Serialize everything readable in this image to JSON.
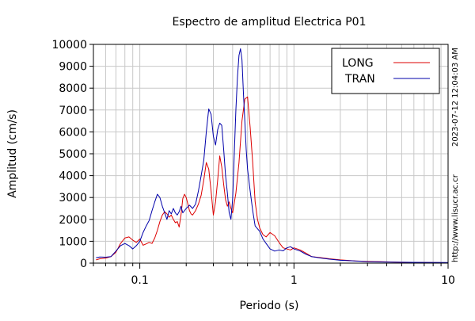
{
  "chart_data": {
    "type": "line",
    "title": "Espectro de amplitud Electrica P01",
    "xlabel": "Periodo (s)",
    "ylabel": "Amplitud (cm/s)",
    "x_scale": "log",
    "xlim": [
      0.05,
      10
    ],
    "ylim": [
      0,
      10000
    ],
    "x_ticks": [
      0.1,
      1,
      10
    ],
    "x_tick_labels": [
      "0.1",
      "1",
      "10"
    ],
    "y_ticks": [
      0,
      1000,
      2000,
      3000,
      4000,
      5000,
      6000,
      7000,
      8000,
      9000,
      10000
    ],
    "y_tick_labels": [
      "0",
      "1000",
      "2000",
      "3000",
      "4000",
      "5000",
      "6000",
      "7000",
      "8000",
      "9000",
      "10000"
    ],
    "grid": true,
    "legend_position": "top-right",
    "timestamp": "2023-07-12 12:04:03 AM",
    "url": "http://www.lisucr.ac.cr",
    "colors": {
      "LONG": "#dd0000",
      "TRAN": "#0000aa"
    },
    "series": [
      {
        "name": "LONG",
        "color": "#dd0000",
        "points": [
          [
            0.052,
            150
          ],
          [
            0.055,
            200
          ],
          [
            0.06,
            230
          ],
          [
            0.065,
            300
          ],
          [
            0.07,
            500
          ],
          [
            0.075,
            900
          ],
          [
            0.08,
            1150
          ],
          [
            0.085,
            1200
          ],
          [
            0.09,
            1050
          ],
          [
            0.095,
            950
          ],
          [
            0.1,
            1100
          ],
          [
            0.105,
            820
          ],
          [
            0.11,
            880
          ],
          [
            0.115,
            950
          ],
          [
            0.12,
            900
          ],
          [
            0.125,
            1150
          ],
          [
            0.13,
            1500
          ],
          [
            0.135,
            1900
          ],
          [
            0.14,
            2200
          ],
          [
            0.145,
            2350
          ],
          [
            0.15,
            2250
          ],
          [
            0.155,
            2100
          ],
          [
            0.16,
            2200
          ],
          [
            0.165,
            2000
          ],
          [
            0.17,
            1850
          ],
          [
            0.175,
            1900
          ],
          [
            0.18,
            1650
          ],
          [
            0.185,
            2200
          ],
          [
            0.19,
            2950
          ],
          [
            0.195,
            3150
          ],
          [
            0.2,
            3000
          ],
          [
            0.205,
            2700
          ],
          [
            0.21,
            2400
          ],
          [
            0.215,
            2250
          ],
          [
            0.22,
            2200
          ],
          [
            0.23,
            2400
          ],
          [
            0.24,
            2700
          ],
          [
            0.25,
            3100
          ],
          [
            0.26,
            3800
          ],
          [
            0.27,
            4600
          ],
          [
            0.28,
            4300
          ],
          [
            0.29,
            3300
          ],
          [
            0.3,
            2200
          ],
          [
            0.31,
            2800
          ],
          [
            0.32,
            3800
          ],
          [
            0.33,
            4900
          ],
          [
            0.34,
            4400
          ],
          [
            0.35,
            3600
          ],
          [
            0.36,
            2900
          ],
          [
            0.37,
            2600
          ],
          [
            0.38,
            2800
          ],
          [
            0.39,
            2500
          ],
          [
            0.4,
            2300
          ],
          [
            0.42,
            3200
          ],
          [
            0.44,
            4600
          ],
          [
            0.46,
            6500
          ],
          [
            0.48,
            7500
          ],
          [
            0.5,
            7600
          ],
          [
            0.52,
            6200
          ],
          [
            0.54,
            4600
          ],
          [
            0.56,
            2800
          ],
          [
            0.58,
            2000
          ],
          [
            0.6,
            1600
          ],
          [
            0.63,
            1300
          ],
          [
            0.66,
            1200
          ],
          [
            0.7,
            1400
          ],
          [
            0.75,
            1250
          ],
          [
            0.8,
            950
          ],
          [
            0.85,
            700
          ],
          [
            0.9,
            650
          ],
          [
            0.95,
            600
          ],
          [
            1.0,
            700
          ],
          [
            1.05,
            650
          ],
          [
            1.1,
            600
          ],
          [
            1.2,
            450
          ],
          [
            1.3,
            300
          ],
          [
            1.5,
            250
          ],
          [
            1.7,
            200
          ],
          [
            2.0,
            150
          ],
          [
            2.5,
            100
          ],
          [
            3.0,
            80
          ],
          [
            4.0,
            60
          ],
          [
            5.0,
            40
          ],
          [
            7.0,
            30
          ],
          [
            10.0,
            20
          ]
        ]
      },
      {
        "name": "TRAN",
        "color": "#0000aa",
        "points": [
          [
            0.052,
            250
          ],
          [
            0.055,
            280
          ],
          [
            0.06,
            270
          ],
          [
            0.065,
            300
          ],
          [
            0.07,
            550
          ],
          [
            0.075,
            800
          ],
          [
            0.08,
            900
          ],
          [
            0.085,
            800
          ],
          [
            0.09,
            650
          ],
          [
            0.095,
            800
          ],
          [
            0.1,
            1000
          ],
          [
            0.105,
            1400
          ],
          [
            0.11,
            1700
          ],
          [
            0.115,
            1950
          ],
          [
            0.12,
            2400
          ],
          [
            0.125,
            2800
          ],
          [
            0.13,
            3150
          ],
          [
            0.135,
            3000
          ],
          [
            0.14,
            2600
          ],
          [
            0.145,
            2300
          ],
          [
            0.15,
            2000
          ],
          [
            0.155,
            2400
          ],
          [
            0.16,
            2250
          ],
          [
            0.165,
            2500
          ],
          [
            0.17,
            2300
          ],
          [
            0.175,
            2200
          ],
          [
            0.18,
            2350
          ],
          [
            0.185,
            2600
          ],
          [
            0.19,
            2300
          ],
          [
            0.2,
            2500
          ],
          [
            0.21,
            2650
          ],
          [
            0.22,
            2500
          ],
          [
            0.23,
            2700
          ],
          [
            0.24,
            3300
          ],
          [
            0.25,
            4000
          ],
          [
            0.26,
            4700
          ],
          [
            0.27,
            6000
          ],
          [
            0.28,
            7050
          ],
          [
            0.29,
            6800
          ],
          [
            0.3,
            5800
          ],
          [
            0.31,
            5400
          ],
          [
            0.32,
            6100
          ],
          [
            0.33,
            6400
          ],
          [
            0.34,
            6300
          ],
          [
            0.35,
            5200
          ],
          [
            0.36,
            4000
          ],
          [
            0.37,
            3200
          ],
          [
            0.38,
            2300
          ],
          [
            0.39,
            2000
          ],
          [
            0.4,
            2900
          ],
          [
            0.41,
            5000
          ],
          [
            0.42,
            7000
          ],
          [
            0.43,
            8500
          ],
          [
            0.44,
            9500
          ],
          [
            0.45,
            9800
          ],
          [
            0.46,
            9300
          ],
          [
            0.47,
            7800
          ],
          [
            0.48,
            6500
          ],
          [
            0.49,
            5200
          ],
          [
            0.5,
            4300
          ],
          [
            0.52,
            3300
          ],
          [
            0.54,
            2400
          ],
          [
            0.56,
            1700
          ],
          [
            0.6,
            1450
          ],
          [
            0.63,
            1100
          ],
          [
            0.66,
            900
          ],
          [
            0.7,
            650
          ],
          [
            0.75,
            550
          ],
          [
            0.8,
            600
          ],
          [
            0.85,
            560
          ],
          [
            0.9,
            700
          ],
          [
            0.95,
            750
          ],
          [
            1.0,
            650
          ],
          [
            1.1,
            550
          ],
          [
            1.2,
            400
          ],
          [
            1.3,
            300
          ],
          [
            1.5,
            230
          ],
          [
            1.7,
            180
          ],
          [
            2.0,
            130
          ],
          [
            2.5,
            100
          ],
          [
            3.0,
            70
          ],
          [
            4.0,
            50
          ],
          [
            5.0,
            40
          ],
          [
            7.0,
            30
          ],
          [
            10.0,
            25
          ]
        ]
      }
    ]
  }
}
